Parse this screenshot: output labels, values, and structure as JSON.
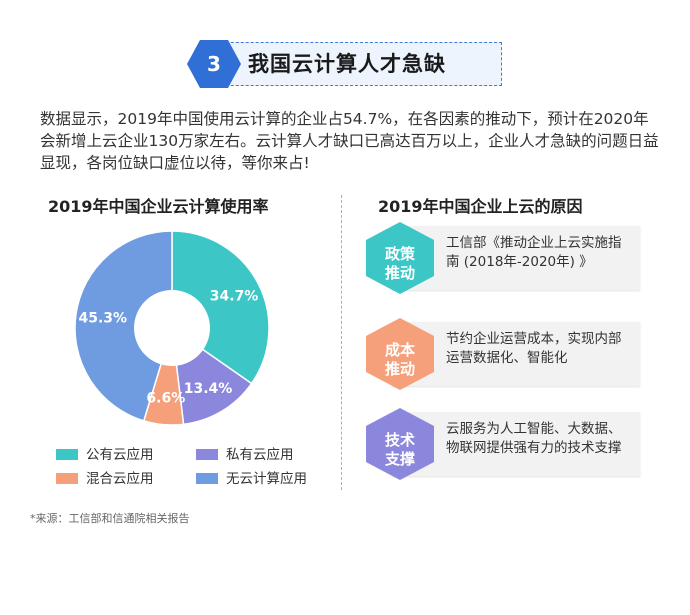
{
  "header": {
    "number": "3",
    "title": "我国云计算人才急缺"
  },
  "intro": "数据显示，2019年中国使用云计算的企业占54.7%，在各因素的推动下，预计在2020年会新增上云企业130万家左右。云计算人才缺口已高达百万以上，企业人才急缺的问题日益显现，各岗位缺口虚位以待，等你来占!",
  "chart_data": {
    "type": "pie",
    "title": "2019年中国企业云计算使用率",
    "donut": true,
    "start": "top",
    "direction": "clockwise",
    "categories": [
      "公有云应用",
      "私有云应用",
      "混合云应用",
      "无云计算应用"
    ],
    "values": [
      34.7,
      13.4,
      6.6,
      45.3
    ],
    "labels": [
      "34.7%",
      "13.4%",
      "6.6%",
      "45.3%"
    ],
    "colors": [
      "#3cc6c6",
      "#8b87dc",
      "#f5a07a",
      "#6f9be0"
    ],
    "legend": "bottom",
    "legend_items": [
      {
        "label": "公有云应用",
        "color": "#3cc6c6"
      },
      {
        "label": "私有云应用",
        "color": "#8b87dc"
      },
      {
        "label": "混合云应用",
        "color": "#f5a07a"
      },
      {
        "label": "无云计算应用",
        "color": "#6f9be0"
      }
    ]
  },
  "reasons": {
    "title": "2019年中国企业上云的原因",
    "items": [
      {
        "tag": "政策推动",
        "tag_line1": "政策",
        "tag_line2": "推动",
        "color": "#3cc6c6",
        "text": "工信部《推动企业上云实施指南 (2018年-2020年) 》"
      },
      {
        "tag": "成本推动",
        "tag_line1": "成本",
        "tag_line2": "推动",
        "color": "#f5a07a",
        "text": "节约企业运营成本，实现内部运营数据化、智能化"
      },
      {
        "tag": "技术支撑",
        "tag_line1": "技术",
        "tag_line2": "支撑",
        "color": "#8b87dc",
        "text": "云服务为人工智能、大数据、物联网提供强有力的技术支撑"
      }
    ]
  },
  "source": "*来源：工信部和信通院相关报告",
  "colors": {
    "accent": "#3d7bd9"
  }
}
